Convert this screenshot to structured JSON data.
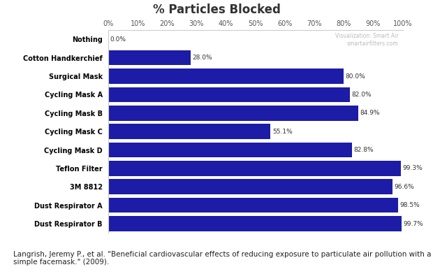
{
  "chart_data": {
    "type": "bar",
    "orientation": "horizontal",
    "title": "% Particles Blocked",
    "categories": [
      "Nothing",
      "Cotton Handkerchief",
      "Surgical Mask",
      "Cycling Mask A",
      "Cycling Mask B",
      "Cycling Mask C",
      "Cycling Mask D",
      "Teflon Filter",
      "3M 8812",
      "Dust Respirator A",
      "Dust Respirator B"
    ],
    "values": [
      0.0,
      28.0,
      80.0,
      82.0,
      84.9,
      55.1,
      82.8,
      99.3,
      96.6,
      98.5,
      99.7
    ],
    "value_labels": [
      "0.0%",
      "28.0%",
      "80.0%",
      "82.0%",
      "84.9%",
      "55.1%",
      "82.8%",
      "99.3%",
      "96.6%",
      "98.5%",
      "99.7%"
    ],
    "data_labels": true,
    "color": "#1c1ca6",
    "xlim": [
      0,
      100
    ],
    "xticks": [
      {
        "value": 0,
        "label": "0%"
      },
      {
        "value": 10,
        "label": "10%"
      },
      {
        "value": 20,
        "label": "20%"
      },
      {
        "value": 30,
        "label": "30%"
      },
      {
        "value": 40,
        "label": "40%"
      },
      {
        "value": 50,
        "label": "50%"
      },
      {
        "value": 60,
        "label": "60%"
      },
      {
        "value": 70,
        "label": "70%"
      },
      {
        "value": 80,
        "label": "80%"
      },
      {
        "value": 90,
        "label": "90%"
      },
      {
        "value": 100,
        "label": "100%"
      }
    ],
    "watermark": [
      "Visualization: Smart Air",
      "smartairfilters.com"
    ],
    "source": "Langrish, Jeremy P., et al. \"Beneficial cardiovascular effects of reducing exposure to particulate air pollution with a simple facemask.\" (2009)."
  }
}
